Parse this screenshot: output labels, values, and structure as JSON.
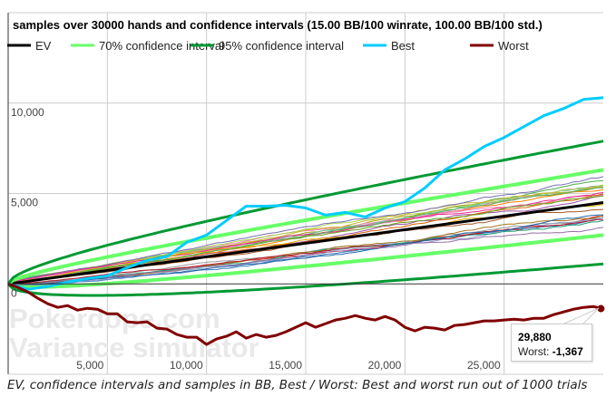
{
  "chart_data": {
    "type": "line",
    "title": "samples over 30000 hands and confidence intervals (15.00 BB/100 winrate, 100.00 BB/100 std.)",
    "xlabel": "",
    "ylabel": "",
    "xlim": [
      0,
      30000
    ],
    "ylim": [
      -5000,
      15000
    ],
    "x_ticks": [
      5000,
      10000,
      15000,
      20000,
      25000
    ],
    "x_tick_labels": [
      "5,000",
      "10,000",
      "15,000",
      "20,000",
      "25,000"
    ],
    "y_ticks": [
      0,
      5000,
      10000
    ],
    "y_tick_labels": [
      "0",
      "5,000",
      "10,000"
    ],
    "grid": true,
    "legend_position": "top",
    "legend": [
      {
        "name": "EV",
        "color": "#000000"
      },
      {
        "name": "70% confidence interval",
        "color": "#66ff66"
      },
      {
        "name": "95% confidence interval",
        "color": "#009933"
      },
      {
        "name": "Best",
        "color": "#00ccff"
      },
      {
        "name": "Worst",
        "color": "#800000"
      }
    ],
    "winrate_bb_per_100": 15.0,
    "std_bb_per_100": 100.0,
    "series": [
      {
        "name": "EV",
        "color": "#000000",
        "x": [
          0,
          30000
        ],
        "y": [
          0,
          4500
        ]
      },
      {
        "name": "70% confidence interval upper",
        "color": "#66ff66",
        "x": [
          0,
          1000,
          2500,
          5000,
          7500,
          10000,
          15000,
          20000,
          25000,
          30000
        ],
        "y": [
          0,
          479,
          895,
          1485,
          2026,
          2540,
          3524,
          4471,
          5397,
          6301
        ]
      },
      {
        "name": "70% confidence interval lower",
        "color": "#66ff66",
        "x": [
          0,
          1000,
          2500,
          5000,
          7500,
          10000,
          15000,
          20000,
          25000,
          30000
        ],
        "y": [
          0,
          -179,
          -145,
          15,
          224,
          460,
          976,
          1529,
          2103,
          2699
        ]
      },
      {
        "name": "95% confidence interval upper",
        "color": "#009933",
        "x": [
          0,
          1000,
          2500,
          5000,
          7500,
          10000,
          15000,
          20000,
          25000,
          30000
        ],
        "y": [
          0,
          770,
          1355,
          2136,
          2822,
          3460,
          4650,
          5772,
          6849,
          7895
        ]
      },
      {
        "name": "95% confidence interval lower",
        "color": "#009933",
        "x": [
          0,
          1000,
          2500,
          5000,
          7500,
          10000,
          15000,
          20000,
          25000,
          30000
        ],
        "y": [
          0,
          -470,
          -605,
          -636,
          -572,
          -460,
          -150,
          228,
          651,
          1105
        ]
      },
      {
        "name": "Best",
        "color": "#00ccff",
        "x": [
          0,
          1000,
          2000,
          3000,
          4000,
          5000,
          6000,
          7000,
          8000,
          9000,
          10000,
          11000,
          12000,
          13000,
          14000,
          15000,
          16000,
          17000,
          18000,
          19000,
          20000,
          21000,
          22000,
          23000,
          24000,
          25000,
          26000,
          27000,
          28000,
          29000,
          30000
        ],
        "y": [
          0,
          -300,
          -150,
          100,
          300,
          450,
          900,
          1300,
          1500,
          2300,
          2700,
          3500,
          4300,
          4300,
          4350,
          4200,
          3800,
          3950,
          3700,
          4200,
          4550,
          5300,
          6300,
          6900,
          7600,
          8100,
          8700,
          9300,
          9700,
          10200,
          10300
        ]
      },
      {
        "name": "Worst",
        "color": "#800000",
        "x": [
          0,
          500,
          1000,
          1500,
          2000,
          2500,
          3000,
          3500,
          4000,
          4500,
          5000,
          5500,
          6000,
          6500,
          7000,
          7500,
          8000,
          8500,
          9000,
          9500,
          10000,
          10500,
          11000,
          11500,
          12000,
          12500,
          13000,
          13500,
          14000,
          14500,
          15000,
          15500,
          16000,
          16500,
          17000,
          17500,
          18000,
          18500,
          19000,
          19500,
          20000,
          20500,
          21000,
          21500,
          22000,
          22500,
          23000,
          23500,
          24000,
          24500,
          25000,
          25500,
          26000,
          26500,
          27000,
          27500,
          28000,
          28500,
          29000,
          29500,
          29880
        ],
        "y": [
          0,
          -200,
          -450,
          -800,
          -1100,
          -1300,
          -1200,
          -1450,
          -1350,
          -1400,
          -1650,
          -1650,
          -2100,
          -2150,
          -2100,
          -2450,
          -2500,
          -2800,
          -2950,
          -2950,
          -3350,
          -3050,
          -2900,
          -2650,
          -3000,
          -2800,
          -2950,
          -2850,
          -2650,
          -2400,
          -2150,
          -2400,
          -2200,
          -2000,
          -1900,
          -1750,
          -1900,
          -2000,
          -1800,
          -2000,
          -2400,
          -2600,
          -2400,
          -2450,
          -2550,
          -2300,
          -2250,
          -2150,
          -2050,
          -2050,
          -2000,
          -1950,
          -2000,
          -1900,
          -1900,
          -1700,
          -1550,
          -1400,
          -1300,
          -1250,
          -1367
        ]
      }
    ],
    "samples_note": "About 25 additional thin multicolored random sample runs between the confidence intervals"
  },
  "watermark": {
    "line1": "Pokerdope.com",
    "line2": "Variance simulator"
  },
  "tooltip": {
    "x_value": "29,880",
    "series_label": "Worst:",
    "y_value": "-1,367"
  },
  "caption": "EV, confidence intervals and samples in BB, Best / Worst: Best and worst run out of 1000 trials",
  "sample_colors": [
    "#e41a1c",
    "#377eb8",
    "#4daf4a",
    "#984ea3",
    "#ff7f00",
    "#a6a61a",
    "#a65628",
    "#f781bf",
    "#999999",
    "#66c2a5",
    "#8da0cb",
    "#e78ac3",
    "#a6d854",
    "#c9b22a",
    "#1b9e77",
    "#d95f02",
    "#7570b3",
    "#e7298a",
    "#66a61e",
    "#e6ab02",
    "#a6761d",
    "#b2182b",
    "#2166ac",
    "#5aae61",
    "#9970ab"
  ]
}
